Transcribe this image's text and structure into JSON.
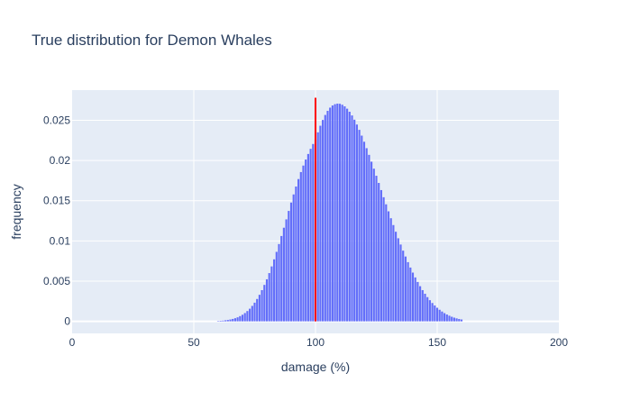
{
  "chart_data": {
    "type": "bar",
    "title": "True distribution for Demon Whales",
    "xlabel": "damage (%)",
    "ylabel": "frequency",
    "xlim": [
      0,
      200
    ],
    "ylim": [
      -0.0015,
      0.02875
    ],
    "xticks": [
      0,
      50,
      100,
      150,
      200
    ],
    "xtick_labels": [
      "0",
      "50",
      "100",
      "150",
      "200"
    ],
    "yticks": [
      0,
      0.005,
      0.01,
      0.015,
      0.02,
      0.025
    ],
    "ytick_labels": [
      "0",
      "0.005",
      "0.01",
      "0.015",
      "0.02",
      "0.025"
    ],
    "grid": true,
    "legend": "none",
    "bar_color": "#636efa",
    "plot_bg": "#e5ecf6",
    "text_color": "#2a3f5f",
    "x": [
      60,
      61,
      62,
      63,
      64,
      65,
      66,
      67,
      68,
      69,
      70,
      71,
      72,
      73,
      74,
      75,
      76,
      77,
      78,
      79,
      80,
      81,
      82,
      83,
      84,
      85,
      86,
      87,
      88,
      89,
      90,
      91,
      92,
      93,
      94,
      95,
      96,
      97,
      98,
      99,
      100,
      101,
      102,
      103,
      104,
      105,
      106,
      107,
      108,
      109,
      110,
      111,
      112,
      113,
      114,
      115,
      116,
      117,
      118,
      119,
      120,
      121,
      122,
      123,
      124,
      125,
      126,
      127,
      128,
      129,
      130,
      131,
      132,
      133,
      134,
      135,
      136,
      137,
      138,
      139,
      140,
      141,
      142,
      143,
      144,
      145,
      146,
      147,
      148,
      149,
      150,
      151,
      152,
      153,
      154,
      155,
      156,
      157,
      158,
      159,
      160
    ],
    "values": [
      5e-05,
      7e-05,
      9e-05,
      0.00013,
      0.00017,
      0.00023,
      0.0003,
      0.00039,
      0.0005,
      0.00065,
      0.00082,
      0.00103,
      0.00128,
      0.00157,
      0.00192,
      0.00232,
      0.00278,
      0.0033,
      0.00388,
      0.00453,
      0.00523,
      0.006,
      0.00683,
      0.00771,
      0.00864,
      0.00961,
      0.01061,
      0.01164,
      0.01268,
      0.01373,
      0.01477,
      0.01578,
      0.01676,
      0.01769,
      0.01856,
      0.01937,
      0.02012,
      0.02081,
      0.02145,
      0.02205,
      0.0226,
      0.0235,
      0.02432,
      0.02504,
      0.02566,
      0.02617,
      0.02657,
      0.02684,
      0.027,
      0.02707,
      0.02705,
      0.02693,
      0.02673,
      0.02644,
      0.02606,
      0.0256,
      0.02507,
      0.02447,
      0.02381,
      0.02309,
      0.02233,
      0.02153,
      0.0207,
      0.01985,
      0.01898,
      0.0181,
      0.01721,
      0.01632,
      0.01543,
      0.01455,
      0.01368,
      0.01282,
      0.01197,
      0.01114,
      0.01033,
      0.00955,
      0.00879,
      0.00806,
      0.00736,
      0.00669,
      0.00606,
      0.00546,
      0.0049,
      0.00437,
      0.00388,
      0.00343,
      0.00301,
      0.00263,
      0.00228,
      0.00197,
      0.00169,
      0.00144,
      0.00122,
      0.00102,
      0.00085,
      0.0007,
      0.00057,
      0.00046,
      0.00037,
      0.00029,
      0.00023
    ],
    "vline": {
      "x": 100,
      "y_range": [
        0,
        0.0278
      ],
      "color": "#ff0000"
    }
  }
}
